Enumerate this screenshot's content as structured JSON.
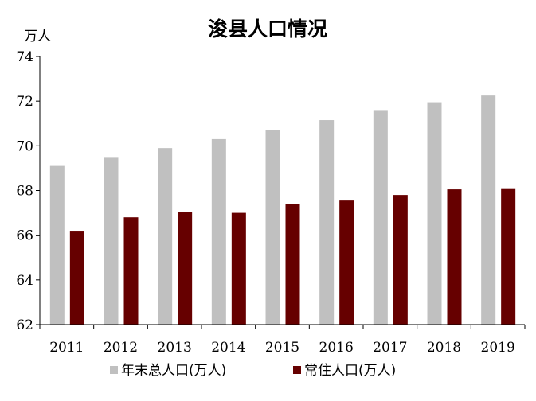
{
  "chart_data": {
    "type": "bar",
    "title": "浚县人口情况",
    "ylabel": "万人",
    "xlabel": "",
    "categories": [
      "2011",
      "2012",
      "2013",
      "2014",
      "2015",
      "2016",
      "2017",
      "2018",
      "2019"
    ],
    "series": [
      {
        "name": "年末总人口(万人)",
        "color": "#c0c0c0",
        "values": [
          69.1,
          69.5,
          69.9,
          70.3,
          70.7,
          71.15,
          71.6,
          71.95,
          72.25
        ]
      },
      {
        "name": "常住人口(万人)",
        "color": "#660000",
        "values": [
          66.2,
          66.8,
          67.05,
          67.0,
          67.4,
          67.55,
          67.8,
          68.05,
          68.1
        ]
      }
    ],
    "ylim": [
      62,
      74
    ],
    "yticks": [
      "62",
      "64",
      "66",
      "68",
      "70",
      "72",
      "74"
    ],
    "grid": false,
    "legend": "bottom"
  }
}
